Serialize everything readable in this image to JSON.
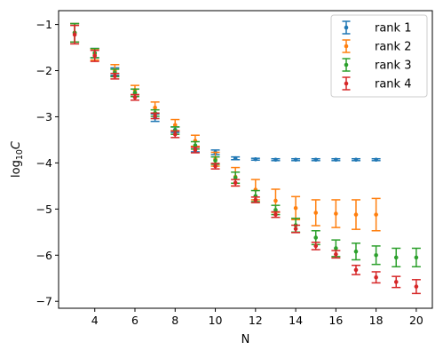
{
  "chart_data": {
    "type": "scatter",
    "style": "errorbar",
    "xlabel": "N",
    "ylabel_parts": {
      "base": "log",
      "subscript": "10",
      "var": "C"
    },
    "xlim": [
      2.2,
      20.8
    ],
    "ylim": [
      -7.15,
      -0.7
    ],
    "xticks": [
      4,
      6,
      8,
      10,
      12,
      14,
      16,
      18,
      20
    ],
    "yticks": [
      -1,
      -2,
      -3,
      -4,
      -5,
      -6,
      -7
    ],
    "grid": false,
    "legend_position": "top-right",
    "series": [
      {
        "name": "rank 1",
        "color": "#1f77b4",
        "x": [
          3,
          4,
          5,
          6,
          7,
          8,
          9,
          10,
          11,
          12,
          13,
          14,
          15,
          16,
          17,
          18
        ],
        "y": [
          -1.18,
          -1.62,
          -2.02,
          -2.48,
          -3.02,
          -3.28,
          -3.7,
          -3.77,
          -3.9,
          -3.92,
          -3.93,
          -3.93,
          -3.93,
          -3.93,
          -3.93,
          -3.93
        ],
        "err": [
          0.2,
          0.1,
          0.08,
          0.08,
          0.08,
          0.06,
          0.06,
          0.05,
          0.03,
          0.02,
          0.02,
          0.02,
          0.02,
          0.02,
          0.02,
          0.02
        ]
      },
      {
        "name": "rank 2",
        "color": "#ff7f0e",
        "x": [
          3,
          4,
          5,
          6,
          7,
          8,
          9,
          10,
          11,
          12,
          13,
          14,
          15,
          16,
          17,
          18
        ],
        "y": [
          -1.18,
          -1.65,
          -2.0,
          -2.42,
          -2.8,
          -3.18,
          -3.52,
          -3.92,
          -4.3,
          -4.58,
          -4.82,
          -4.98,
          -5.08,
          -5.1,
          -5.12,
          -5.12
        ],
        "err": [
          0.2,
          0.12,
          0.13,
          0.1,
          0.12,
          0.12,
          0.12,
          0.15,
          0.2,
          0.22,
          0.25,
          0.25,
          0.28,
          0.3,
          0.32,
          0.35
        ]
      },
      {
        "name": "rank 3",
        "color": "#2ca02c",
        "x": [
          3,
          4,
          5,
          6,
          7,
          8,
          9,
          10,
          11,
          12,
          13,
          14,
          15,
          16,
          17,
          18,
          19,
          20
        ],
        "y": [
          -1.18,
          -1.62,
          -2.05,
          -2.48,
          -2.92,
          -3.3,
          -3.62,
          -3.95,
          -4.32,
          -4.72,
          -5.02,
          -5.35,
          -5.62,
          -5.85,
          -5.92,
          -6.0,
          -6.05,
          -6.05
        ],
        "err": [
          0.2,
          0.1,
          0.08,
          0.08,
          0.07,
          0.08,
          0.08,
          0.08,
          0.12,
          0.12,
          0.1,
          0.15,
          0.15,
          0.18,
          0.18,
          0.2,
          0.2,
          0.2
        ]
      },
      {
        "name": "rank 4",
        "color": "#d62728",
        "x": [
          3,
          4,
          5,
          6,
          7,
          8,
          9,
          10,
          11,
          12,
          13,
          14,
          15,
          16,
          17,
          18,
          19,
          20
        ],
        "y": [
          -1.22,
          -1.68,
          -2.12,
          -2.58,
          -2.98,
          -3.38,
          -3.72,
          -4.07,
          -4.43,
          -4.8,
          -5.12,
          -5.43,
          -5.8,
          -5.98,
          -6.32,
          -6.48,
          -6.58,
          -6.68
        ],
        "err": [
          0.2,
          0.12,
          0.06,
          0.06,
          0.06,
          0.07,
          0.06,
          0.06,
          0.07,
          0.06,
          0.06,
          0.08,
          0.08,
          0.08,
          0.1,
          0.12,
          0.12,
          0.15
        ]
      }
    ]
  }
}
